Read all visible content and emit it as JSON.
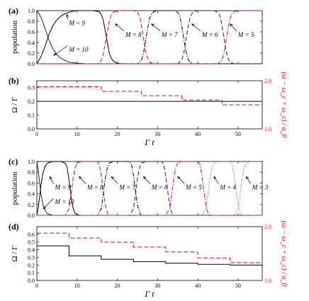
{
  "chart_data": [
    {
      "panel": "(a)",
      "type": "line",
      "ylabel": "population",
      "xlim": [
        0,
        56
      ],
      "ylim": [
        0,
        1.0
      ],
      "yticks": [
        "0.0",
        "0.2",
        "0.4",
        "0.6",
        "0.8",
        "1.0"
      ],
      "xticks": [],
      "series": [
        {
          "name": "M = 10",
          "color": "#1a1a8a",
          "dash": "solid",
          "x": [
            0,
            0.5,
            1,
            1.5,
            2,
            2.5,
            3,
            3.5,
            4,
            5,
            6,
            7,
            8,
            10,
            12,
            56
          ],
          "y": [
            1.0,
            0.95,
            0.87,
            0.78,
            0.67,
            0.56,
            0.45,
            0.36,
            0.28,
            0.17,
            0.1,
            0.06,
            0.03,
            0.01,
            0,
            0
          ]
        },
        {
          "name": "M = 9",
          "color": "#000000",
          "dash": "solid",
          "x": [
            0,
            1,
            2,
            3,
            4,
            5,
            6,
            7,
            8,
            9,
            10,
            12,
            14,
            15.5,
            16,
            16.5,
            17,
            17.5,
            18,
            18.5,
            19,
            20,
            21,
            56
          ],
          "y": [
            0,
            0.13,
            0.32,
            0.55,
            0.72,
            0.83,
            0.9,
            0.94,
            0.97,
            0.99,
            1.0,
            1.0,
            1.0,
            0.98,
            0.93,
            0.82,
            0.62,
            0.4,
            0.2,
            0.1,
            0.05,
            0.01,
            0,
            0
          ]
        },
        {
          "name": "M = 8",
          "color": "#e0002a",
          "dash": "dashed",
          "x": [
            0,
            15,
            16,
            16.5,
            17,
            17.5,
            18,
            18.5,
            19,
            20,
            24,
            25,
            25.5,
            26,
            26.5,
            27,
            27.5,
            28,
            29,
            56
          ],
          "y": [
            0,
            0,
            0.06,
            0.18,
            0.38,
            0.6,
            0.8,
            0.92,
            0.97,
            1.0,
            1.0,
            0.97,
            0.9,
            0.72,
            0.48,
            0.25,
            0.1,
            0.03,
            0,
            0
          ]
        },
        {
          "name": "M = 7",
          "color": "#000000",
          "dash": "dashdot",
          "x": [
            0,
            25,
            26,
            26.5,
            27,
            27.5,
            28,
            28.5,
            29,
            30,
            34,
            35,
            35.5,
            36,
            36.5,
            37,
            37.5,
            38,
            39,
            56
          ],
          "y": [
            0,
            0,
            0.07,
            0.2,
            0.42,
            0.66,
            0.85,
            0.94,
            0.98,
            1.0,
            1.0,
            0.97,
            0.9,
            0.72,
            0.48,
            0.25,
            0.1,
            0.03,
            0,
            0
          ]
        },
        {
          "name": "M = 6",
          "color": "#1a1a8a",
          "dash": "dashed",
          "x": [
            0,
            35,
            36,
            36.5,
            37,
            37.5,
            38,
            38.5,
            39,
            40,
            44,
            45,
            45.5,
            46,
            46.5,
            47,
            47.5,
            48,
            49,
            56
          ],
          "y": [
            0,
            0,
            0.07,
            0.2,
            0.42,
            0.66,
            0.85,
            0.94,
            0.98,
            1.0,
            1.0,
            0.97,
            0.9,
            0.72,
            0.48,
            0.25,
            0.1,
            0.03,
            0,
            0
          ]
        },
        {
          "name": "M = 5",
          "color": "#e0002a",
          "dash": "dashdot",
          "x": [
            0,
            45,
            46,
            46.5,
            47,
            47.5,
            48,
            48.5,
            49,
            50,
            56
          ],
          "y": [
            0,
            0,
            0.07,
            0.2,
            0.42,
            0.66,
            0.85,
            0.94,
            0.98,
            1.0,
            1.0
          ]
        }
      ],
      "annotations": [
        {
          "text": "M = 9",
          "x": 8,
          "y": 0.77,
          "arrow_to": [
            7.5,
            0.93
          ]
        },
        {
          "text": "M = 10",
          "x": 8,
          "y": 0.27,
          "arrow_to": [
            4.2,
            0.16
          ]
        },
        {
          "text": "M = 8",
          "x": 22,
          "y": 0.55,
          "arrow_to": [
            19.5,
            0.75
          ]
        },
        {
          "text": "M = 7",
          "x": 31,
          "y": 0.55,
          "arrow_to": [
            28.5,
            0.75
          ]
        },
        {
          "text": "M = 6",
          "x": 41,
          "y": 0.55,
          "arrow_to": [
            38.5,
            0.75
          ]
        },
        {
          "text": "M = 5",
          "x": 50,
          "y": 0.55,
          "arrow_to": [
            48,
            0.75
          ]
        }
      ]
    },
    {
      "panel": "(b)",
      "type": "line",
      "ylabel": "Ω / Γ",
      "y2label": "(ω − ω_c + ω_c) / a_0",
      "xlabel": "Γ t",
      "xlim": [
        0,
        56
      ],
      "ylim": [
        0,
        0.35
      ],
      "y2lim": [
        1.0,
        2.0
      ],
      "xticks": [
        "0",
        "10",
        "20",
        "30",
        "40",
        "50"
      ],
      "yticks": [
        "0.0",
        "0.1",
        "0.2",
        "0.3"
      ],
      "y2ticks": [
        "1.0",
        "2.0"
      ],
      "series": [
        {
          "name": "Ω / Γ",
          "color": "#000000",
          "dash": "solid",
          "axis": "left",
          "x": [
            0,
            56
          ],
          "y": [
            0.2,
            0.2
          ]
        },
        {
          "name": "(ω − ω_c + ω_c) / a_0",
          "color": "#e0002a",
          "dash": "dashed",
          "axis": "right",
          "x": [
            0,
            16,
            16,
            26,
            26,
            36,
            36,
            46,
            46,
            56
          ],
          "y": [
            1.875,
            1.875,
            1.78,
            1.78,
            1.69,
            1.69,
            1.6,
            1.6,
            1.5,
            1.5
          ]
        }
      ]
    },
    {
      "panel": "(c)",
      "type": "line",
      "ylabel": "population",
      "xlim": [
        0,
        56
      ],
      "ylim": [
        0,
        1.0
      ],
      "yticks": [
        "0.0",
        "0.2",
        "0.4",
        "0.6",
        "0.8",
        "1.0"
      ],
      "xticks": [],
      "series": [
        {
          "name": "M = 10",
          "color": "#1a1a8a",
          "dash": "solid",
          "x": [
            0,
            0.3,
            0.7,
            1,
            1.5,
            2,
            2.5,
            3,
            4,
            56
          ],
          "y": [
            1.0,
            0.85,
            0.6,
            0.4,
            0.2,
            0.1,
            0.04,
            0.02,
            0,
            0
          ]
        },
        {
          "name": "M = 9",
          "color": "#000000",
          "dash": "solid",
          "x": [
            0,
            0.3,
            0.7,
            1,
            1.5,
            2,
            2.5,
            3,
            4,
            5,
            6,
            7,
            7.5,
            8,
            8.5,
            9,
            9.5,
            10,
            11,
            56
          ],
          "y": [
            0,
            0.12,
            0.35,
            0.55,
            0.78,
            0.9,
            0.96,
            0.98,
            1.0,
            1.0,
            1.0,
            0.97,
            0.9,
            0.65,
            0.35,
            0.13,
            0.04,
            0.01,
            0,
            0
          ]
        },
        {
          "name": "M = 8",
          "color": "#e0002a",
          "dash": "dashed",
          "x": [
            0,
            7,
            8,
            8.5,
            9,
            9.5,
            10,
            11,
            15,
            15.5,
            16,
            16.5,
            17,
            17.5,
            18,
            56
          ],
          "y": [
            0,
            0,
            0.12,
            0.38,
            0.68,
            0.88,
            0.97,
            1.0,
            1.0,
            0.95,
            0.75,
            0.45,
            0.2,
            0.05,
            0,
            0
          ]
        },
        {
          "name": "M = 7",
          "color": "#000000",
          "dash": "dashdot",
          "x": [
            0,
            15,
            16,
            16.5,
            17,
            17.5,
            18,
            19,
            23,
            23.5,
            24,
            24.5,
            25,
            25.5,
            26,
            56
          ],
          "y": [
            0,
            0,
            0.12,
            0.38,
            0.68,
            0.88,
            0.97,
            1.0,
            1.0,
            0.95,
            0.75,
            0.45,
            0.2,
            0.05,
            0,
            0
          ]
        },
        {
          "name": "M = 6",
          "color": "#1a1a8a",
          "dash": "dashed",
          "x": [
            0,
            23,
            24,
            24.5,
            25,
            25.5,
            26,
            27,
            31,
            31.5,
            32,
            32.5,
            33,
            33.5,
            34,
            56
          ],
          "y": [
            0,
            0,
            0.12,
            0.38,
            0.68,
            0.88,
            0.97,
            1.0,
            1.0,
            0.95,
            0.75,
            0.45,
            0.2,
            0.05,
            0,
            0
          ]
        },
        {
          "name": "M = 5",
          "color": "#e0002a",
          "dash": "dashdot",
          "x": [
            0,
            32,
            33,
            33.5,
            34,
            34.5,
            35,
            36,
            40,
            40.5,
            41,
            41.5,
            42,
            42.5,
            43,
            56
          ],
          "y": [
            0,
            0,
            0.12,
            0.38,
            0.68,
            0.88,
            0.97,
            1.0,
            1.0,
            0.95,
            0.75,
            0.45,
            0.2,
            0.05,
            0,
            0
          ]
        },
        {
          "name": "M = 4",
          "color": "#666666",
          "dash": "dotted",
          "x": [
            0,
            41,
            42,
            42.5,
            43,
            43.5,
            44,
            45,
            48,
            48.5,
            49,
            49.5,
            50,
            50.5,
            51,
            56
          ],
          "y": [
            0,
            0,
            0.12,
            0.38,
            0.68,
            0.88,
            0.97,
            1.0,
            1.0,
            0.95,
            0.75,
            0.45,
            0.2,
            0.05,
            0,
            0
          ]
        },
        {
          "name": "M = 3",
          "color": "#666666",
          "dash": "dotted",
          "x": [
            0,
            49,
            50,
            50.5,
            51,
            51.5,
            52,
            53,
            56
          ],
          "y": [
            0,
            0,
            0.12,
            0.38,
            0.68,
            0.88,
            0.97,
            1.0,
            1.0
          ]
        }
      ],
      "annotations": [
        {
          "text": "M = 9",
          "x": 4.5,
          "y": 0.52,
          "arrow_to": [
            3.2,
            0.72
          ]
        },
        {
          "text": "M = 10",
          "x": 4.5,
          "y": 0.25,
          "arrow_to": [
            1.6,
            0.12
          ]
        },
        {
          "text": "M = 8",
          "x": 12.5,
          "y": 0.52,
          "arrow_to": [
            10.5,
            0.72
          ]
        },
        {
          "text": "M = 7",
          "x": 20.5,
          "y": 0.52,
          "arrow_to": [
            18.5,
            0.72
          ]
        },
        {
          "text": "M = 6",
          "x": 28.5,
          "y": 0.52,
          "arrow_to": [
            26.5,
            0.72
          ]
        },
        {
          "text": "M = 5",
          "x": 37,
          "y": 0.52,
          "arrow_to": [
            35,
            0.72
          ]
        },
        {
          "text": "M = 4",
          "x": 45.5,
          "y": 0.52,
          "arrow_to": [
            44,
            0.72
          ]
        },
        {
          "text": "M = 3",
          "x": 53.5,
          "y": 0.52,
          "arrow_to": [
            52,
            0.72
          ]
        }
      ]
    },
    {
      "panel": "(d)",
      "type": "line",
      "ylabel": "Ω / Γ",
      "y2label": "(ω − ω_c + ω_c) / a_0",
      "xlabel": "Γ t",
      "xlim": [
        0,
        56
      ],
      "ylim": [
        0,
        0.7
      ],
      "y2lim": [
        1.0,
        2.0
      ],
      "xticks": [
        "0",
        "10",
        "20",
        "30",
        "40",
        "50"
      ],
      "yticks": [
        "0.0",
        "0.1",
        "0.2",
        "0.3",
        "0.4",
        "0.5",
        "0.6"
      ],
      "y2ticks": [
        "1.0",
        "2.0"
      ],
      "series": [
        {
          "name": "Ω / Γ",
          "color": "#000000",
          "dash": "solid",
          "axis": "left",
          "x": [
            0,
            8,
            8,
            16,
            16,
            24,
            24,
            32,
            32,
            40,
            40,
            48,
            48,
            56
          ],
          "y": [
            0.45,
            0.45,
            0.32,
            0.32,
            0.275,
            0.275,
            0.245,
            0.245,
            0.225,
            0.225,
            0.21,
            0.21,
            0.2,
            0.2
          ]
        },
        {
          "name": "(ω − ω_c + ω_c) / a_0",
          "color": "#e0002a",
          "dash": "dashed",
          "axis": "right",
          "x": [
            0,
            8,
            8,
            16,
            16,
            24,
            24,
            32,
            32,
            40,
            40,
            48,
            48,
            56
          ],
          "y": [
            1.88,
            1.88,
            1.79,
            1.79,
            1.71,
            1.71,
            1.62,
            1.62,
            1.53,
            1.53,
            1.42,
            1.42,
            1.33,
            1.33
          ]
        }
      ]
    }
  ]
}
